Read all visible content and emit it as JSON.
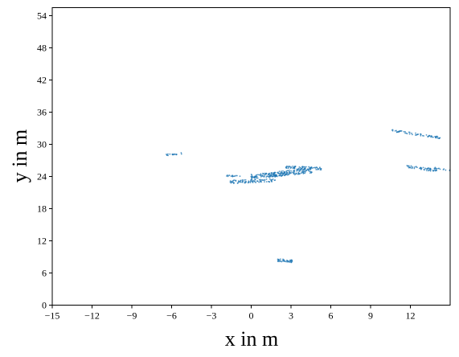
{
  "chart_data": {
    "type": "scatter",
    "xlabel": "x in m",
    "ylabel": "y in m",
    "xlim": [
      -15,
      15
    ],
    "ylim": [
      0,
      55.5
    ],
    "xticks": [
      -15,
      -12,
      -9,
      -6,
      -3,
      0,
      3,
      6,
      9,
      12
    ],
    "xtick_labels": [
      "−15",
      "−12",
      "−9",
      "−6",
      "−3",
      "0",
      "3",
      "6",
      "9",
      "12"
    ],
    "yticks": [
      0,
      6,
      12,
      18,
      24,
      30,
      36,
      42,
      48,
      54
    ],
    "ytick_labels": [
      "0",
      "6",
      "12",
      "18",
      "24",
      "30",
      "36",
      "42",
      "48",
      "54"
    ],
    "grid": false,
    "color": "#1f77b4",
    "clusters": [
      {
        "x1": -6.5,
        "y1": 28.0,
        "x2": -5.2,
        "y2": 28.3,
        "thickness": 0.3,
        "n": 18
      },
      {
        "x1": -1.9,
        "y1": 24.1,
        "x2": -0.8,
        "y2": 24.1,
        "thickness": 0.3,
        "n": 16
      },
      {
        "x1": -1.6,
        "y1": 23.0,
        "x2": 1.9,
        "y2": 23.3,
        "thickness": 0.6,
        "n": 90
      },
      {
        "x1": 0.0,
        "y1": 24.0,
        "x2": 3.0,
        "y2": 24.6,
        "thickness": 0.8,
        "n": 110
      },
      {
        "x1": 1.4,
        "y1": 24.3,
        "x2": 4.6,
        "y2": 25.2,
        "thickness": 1.0,
        "n": 130
      },
      {
        "x1": 2.6,
        "y1": 25.7,
        "x2": 5.3,
        "y2": 25.5,
        "thickness": 0.5,
        "n": 70
      },
      {
        "x1": 10.6,
        "y1": 32.6,
        "x2": 14.3,
        "y2": 31.2,
        "thickness": 0.4,
        "n": 65
      },
      {
        "x1": 11.7,
        "y1": 25.9,
        "x2": 14.0,
        "y2": 25.1,
        "thickness": 0.5,
        "n": 55
      },
      {
        "x1": 13.8,
        "y1": 25.6,
        "x2": 15.0,
        "y2": 25.2,
        "thickness": 0.3,
        "n": 14
      },
      {
        "x1": 2.0,
        "y1": 8.4,
        "x2": 3.1,
        "y2": 8.2,
        "thickness": 0.5,
        "n": 40
      }
    ]
  }
}
